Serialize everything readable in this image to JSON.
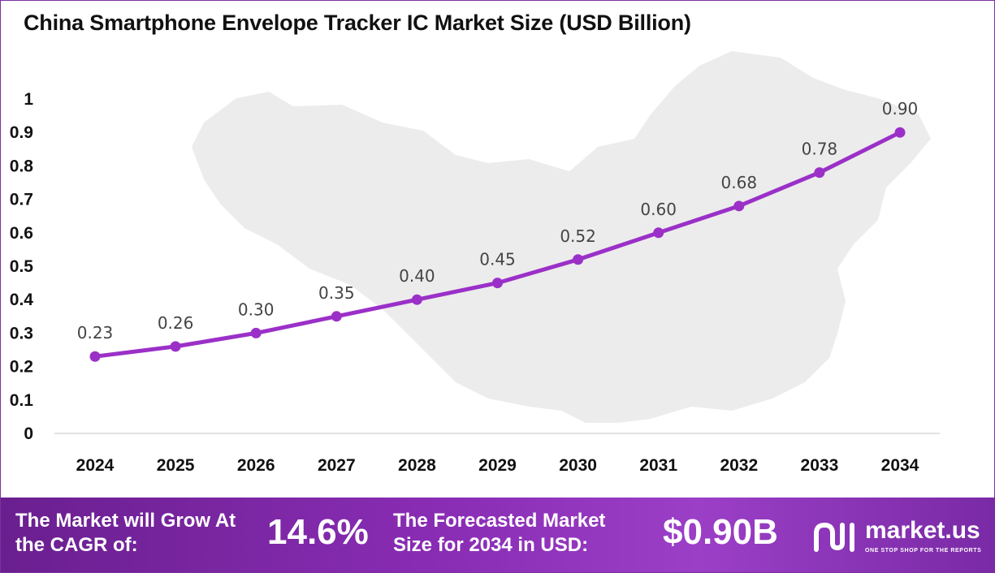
{
  "title": "China Smartphone Envelope Tracker IC Market Size (USD Billion)",
  "colors": {
    "line": "#9b30c8",
    "accent": "#7b2fa0",
    "map": "#ececec"
  },
  "chart_data": {
    "type": "line",
    "title": "China Smartphone Envelope Tracker IC Market Size (USD Billion)",
    "categories": [
      "2024",
      "2025",
      "2026",
      "2027",
      "2028",
      "2029",
      "2030",
      "2031",
      "2032",
      "2033",
      "2034"
    ],
    "values": [
      0.23,
      0.26,
      0.3,
      0.35,
      0.4,
      0.45,
      0.52,
      0.6,
      0.68,
      0.78,
      0.9
    ],
    "data_labels": [
      "0.23",
      "0.26",
      "0.30",
      "0.35",
      "0.40",
      "0.45",
      "0.52",
      "0.60",
      "0.68",
      "0.78",
      "0.90"
    ],
    "y_ticks": [
      "0",
      "0.1",
      "0.2",
      "0.3",
      "0.4",
      "0.5",
      "0.6",
      "0.7",
      "0.8",
      "0.9",
      "1"
    ],
    "ylim": [
      0,
      1
    ],
    "grid": false,
    "legend": "none"
  },
  "footer": {
    "cagr_label": "The Market will Grow At the CAGR of:",
    "cagr_value": "14.6%",
    "forecast_label": "The Forecasted Market Size for 2034 in USD:",
    "forecast_value": "$0.90B",
    "brand": "market.us",
    "tagline": "ONE STOP SHOP FOR THE REPORTS",
    "logo_icon": "market-us-logo-icon"
  }
}
